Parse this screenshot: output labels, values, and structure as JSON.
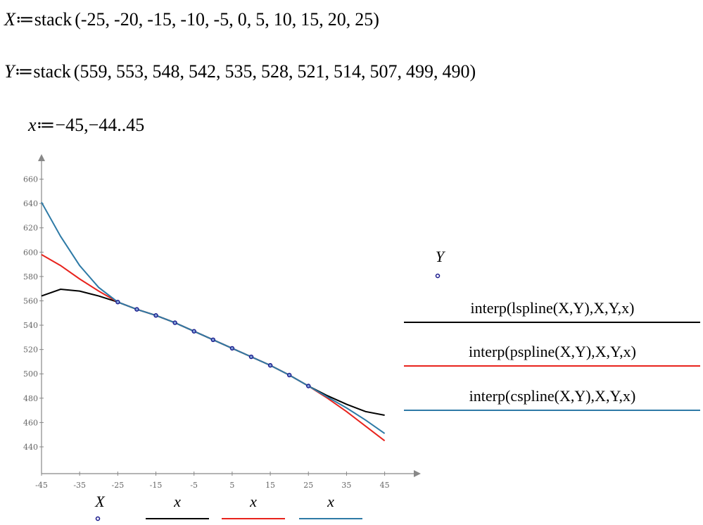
{
  "definitions": [
    {
      "name": "X",
      "operator": "≔",
      "function": "stack",
      "open": "(",
      "sep": ",",
      "close": ")",
      "args": [
        -25,
        -20,
        -15,
        -10,
        -5,
        0,
        5,
        10,
        15,
        20,
        25
      ]
    },
    {
      "name": "Y",
      "operator": "≔",
      "function": "stack",
      "open": "(",
      "sep": ",",
      "close": ")",
      "args": [
        559,
        553,
        548,
        542,
        535,
        528,
        521,
        514,
        507,
        499,
        490
      ]
    },
    {
      "name": "x",
      "operator": "≔",
      "expression": "−45,−44..45"
    }
  ],
  "chart_data": {
    "type": "line",
    "xlim": [
      -45,
      54.3
    ],
    "ylim": [
      418,
      680
    ],
    "xticks": [
      -45,
      -35,
      -25,
      -15,
      -5,
      5,
      15,
      25,
      35,
      45
    ],
    "yticks": [
      440,
      460,
      480,
      500,
      520,
      540,
      560,
      580,
      600,
      620,
      640,
      660
    ],
    "series": [
      {
        "type": "scatter",
        "name": "Y",
        "x_name": "X",
        "color": "#1a1a8c",
        "x": [
          -25,
          -20,
          -15,
          -10,
          -5,
          0,
          5,
          10,
          15,
          20,
          25
        ],
        "values": [
          559,
          553,
          548,
          542,
          535,
          528,
          521,
          514,
          507,
          499,
          490
        ]
      },
      {
        "type": "line",
        "name": "interp(lspline(X,Y),X,Y,x)",
        "x_name": "x",
        "color": "#000000",
        "x": [
          -45,
          -40,
          -35,
          -30,
          -25,
          -20,
          -15,
          -10,
          -5,
          0,
          5,
          10,
          15,
          20,
          25,
          30,
          35,
          40,
          45
        ],
        "values": [
          564,
          569.5,
          568,
          564,
          559,
          553,
          548,
          542,
          535,
          528,
          521,
          514,
          507,
          499,
          490,
          482,
          475,
          469,
          466
        ]
      },
      {
        "type": "line",
        "name": "interp(pspline(X,Y),X,Y,x)",
        "x_name": "x",
        "color": "#e8231d",
        "x": [
          -45,
          -40,
          -35,
          -30,
          -25,
          -20,
          -15,
          -10,
          -5,
          0,
          5,
          10,
          15,
          20,
          25,
          30,
          35,
          40,
          45
        ],
        "values": [
          598,
          589,
          578,
          568,
          559,
          553,
          548,
          542,
          535,
          528,
          521,
          514,
          507,
          499,
          490,
          480,
          469,
          457,
          445
        ]
      },
      {
        "type": "line",
        "name": "interp(cspline(X,Y),X,Y,x)",
        "x_name": "x",
        "color": "#2e7aa6",
        "x": [
          -45,
          -40,
          -35,
          -30,
          -25,
          -20,
          -15,
          -10,
          -5,
          0,
          5,
          10,
          15,
          20,
          25,
          30,
          35,
          40,
          45
        ],
        "values": [
          641,
          613,
          589,
          571,
          559,
          553,
          548,
          542,
          535,
          528,
          521,
          514,
          507,
          499,
          490,
          481,
          472,
          462,
          451
        ]
      }
    ]
  }
}
